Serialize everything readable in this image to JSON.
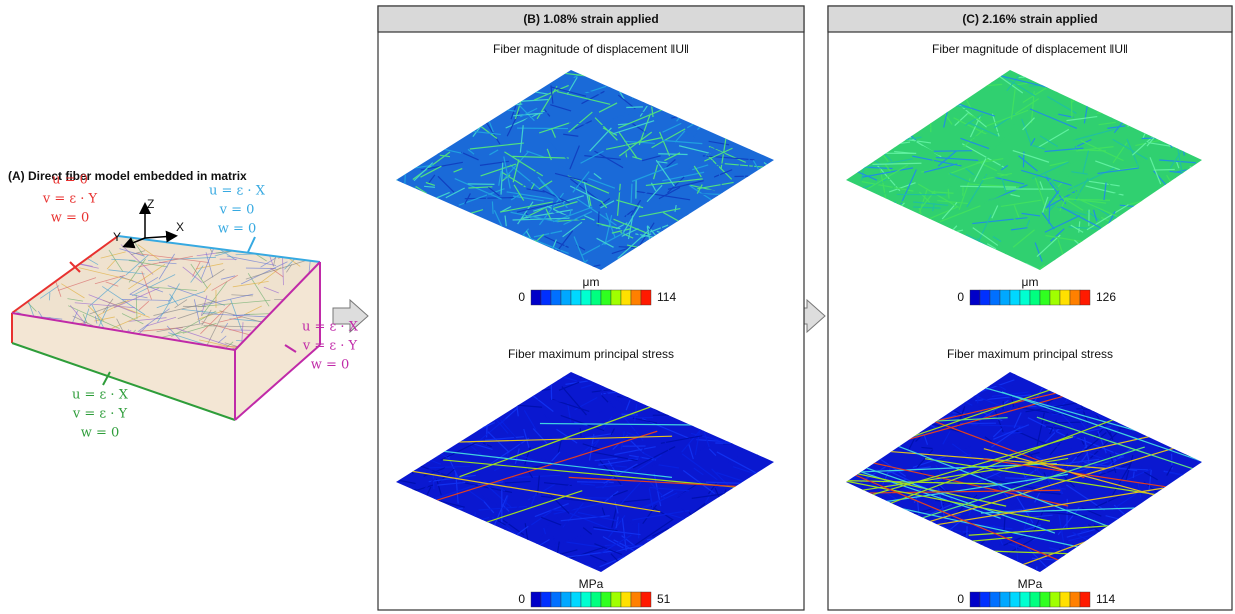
{
  "panel_a": {
    "title": "(A) Direct fiber model embedded in matrix",
    "axes": {
      "z": "Z",
      "x": "X",
      "y": "Y"
    },
    "boundary_conditions": {
      "left": [
        "u = 0",
        "v = ε · Y",
        "w = 0"
      ],
      "back": [
        "u = ε · X",
        "v = 0",
        "w = 0"
      ],
      "right": [
        "u = ε · X",
        "v = ε · Y",
        "w = 0"
      ],
      "front": [
        "u = ε · X",
        "v = ε · Y",
        "w = 0"
      ]
    }
  },
  "panels": [
    {
      "title": "(B) 1.08% strain applied",
      "displacement": {
        "label": "Fiber magnitude of displacement ‖U‖",
        "unit": "μm",
        "min": 0,
        "max": 114
      },
      "stress": {
        "label": "Fiber maximum principal stress",
        "unit": "MPa",
        "min": 0,
        "max": 51
      }
    },
    {
      "title": "(C) 2.16% strain applied",
      "displacement": {
        "label": "Fiber magnitude of displacement ‖U‖",
        "unit": "μm",
        "min": 0,
        "max": 126
      },
      "stress": {
        "label": "Fiber maximum principal stress",
        "unit": "MPa",
        "min": 0,
        "max": 114
      }
    }
  ]
}
